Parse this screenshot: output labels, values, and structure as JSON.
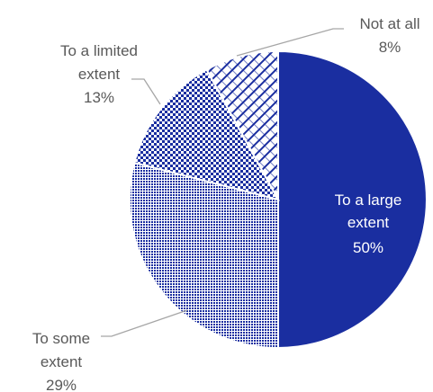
{
  "chart_data": {
    "type": "pie",
    "title": "",
    "slices": [
      {
        "line1": "To a large",
        "line2": "extent",
        "value": 50,
        "value_label": "50%",
        "fill": "solid",
        "color": "#1a2ea0"
      },
      {
        "line1": "To some",
        "line2": "extent",
        "value": 29,
        "value_label": "29%",
        "fill": "dense-dots",
        "color": "#1a2ea0"
      },
      {
        "line1": "To a limited",
        "line2": "extent",
        "value": 13,
        "value_label": "13%",
        "fill": "checker",
        "color": "#1a2ea0"
      },
      {
        "line1": "Not at all",
        "line2": "",
        "value": 8,
        "value_label": "8%",
        "fill": "wave",
        "color": "#1a2ea0"
      }
    ],
    "label_color": "#595959",
    "start_angle": "12 o'clock",
    "direction": "clockwise"
  }
}
